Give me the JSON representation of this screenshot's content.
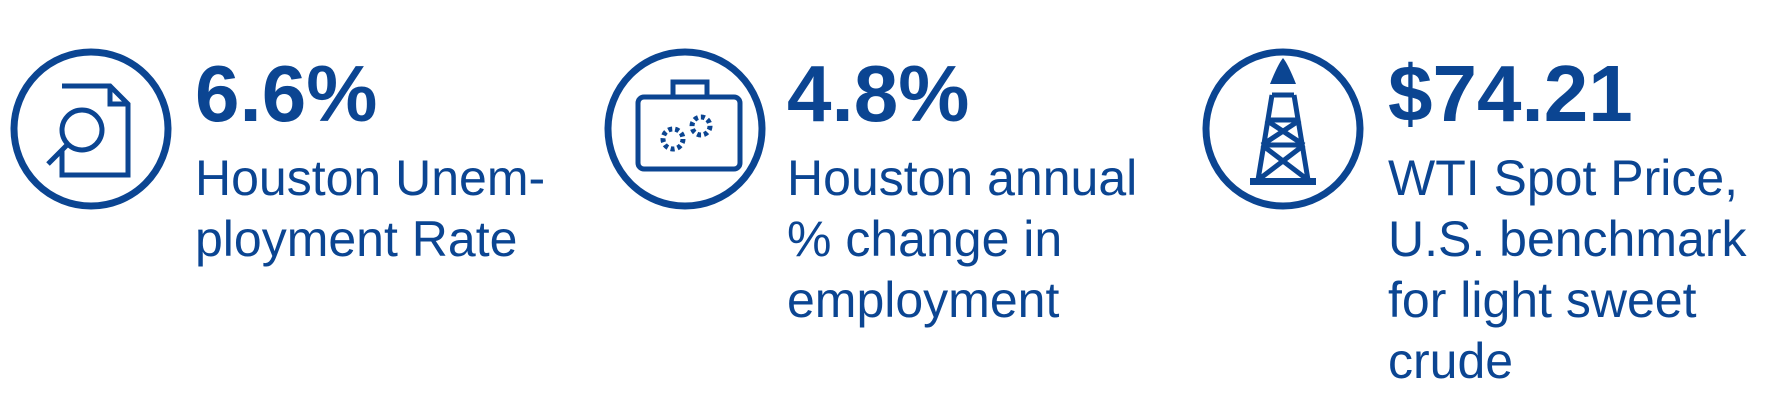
{
  "stats": [
    {
      "value": "6.6%",
      "label_lines": [
        "Houston Unem-",
        "ployment Rate"
      ]
    },
    {
      "value": "4.8%",
      "label_lines": [
        "Houston annual",
        "% change in",
        "employment"
      ]
    },
    {
      "value": "$74.21",
      "label_lines": [
        "WTI Spot Price,",
        "U.S. benchmark",
        "for light sweet",
        "crude"
      ]
    }
  ]
}
